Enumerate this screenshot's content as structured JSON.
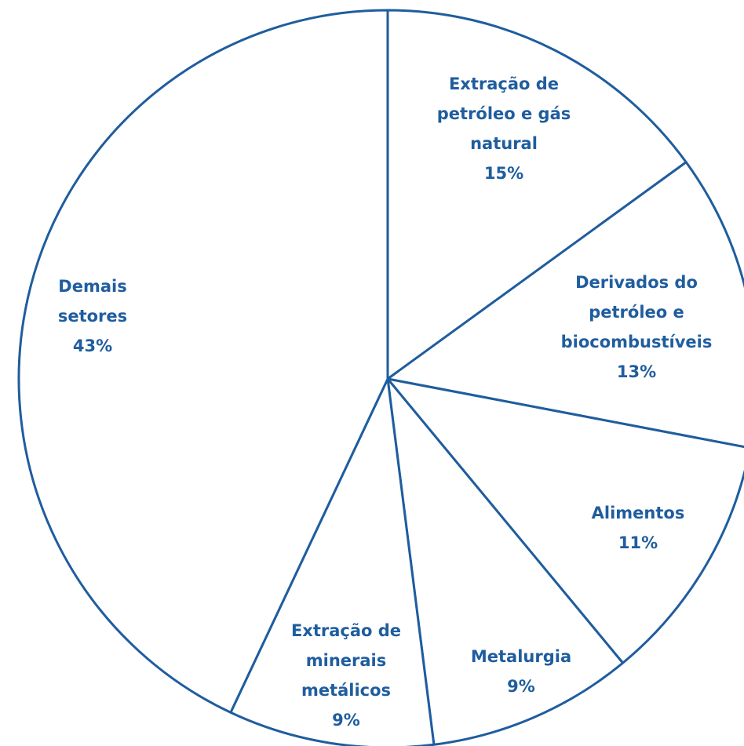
{
  "chart_data": {
    "type": "pie",
    "categories": [
      [
        "Extração de",
        "petróleo e gás",
        "natural"
      ],
      [
        "Derivados do",
        "petróleo e",
        "biocombustíveis"
      ],
      [
        "Alimentos"
      ],
      [
        "Metalurgia"
      ],
      [
        "Extração de",
        "minerais",
        "metálicos"
      ],
      [
        "Demais",
        "setores"
      ]
    ],
    "values": [
      15,
      13,
      11,
      9,
      9,
      43
    ],
    "value_labels": [
      "15%",
      "13%",
      "11%",
      "9%",
      "9%",
      "43%"
    ],
    "color": "#1f5d9e"
  }
}
